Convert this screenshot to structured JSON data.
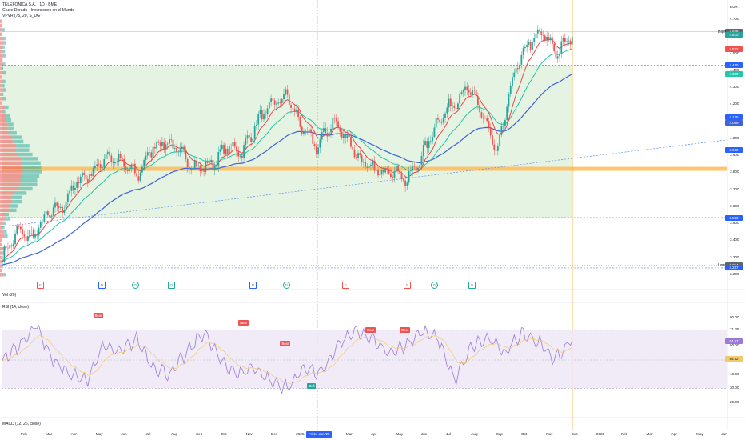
{
  "header": {
    "symbol": "TELEFONICA S.A. · 1D · BME",
    "indicator1": "Cruce Dorado - Inversiones en el Mundo",
    "indicator2": "VPVR (75, 20, S_UG\")",
    "currency": "EUR"
  },
  "colors": {
    "up": "#26a69a",
    "down": "#ef5350",
    "ema_fast": "#ef4444",
    "ema_mid": "#22c7a8",
    "ema_slow": "#3f63d8",
    "zone": "#dcefd9",
    "poc": "#ffb74d",
    "rsi": "#9c7bd8",
    "rsi_ma": "#f3c96e",
    "dashed": "#5b8def"
  },
  "price_axis": {
    "min": 3.185,
    "max": 4.7,
    "ticks": [
      "4.700",
      "4.600",
      "4.500",
      "4.400",
      "4.300",
      "4.200",
      "4.100",
      "4.000",
      "3.900",
      "3.800",
      "3.700",
      "3.600",
      "3.500",
      "3.400",
      "3.300",
      "3.200"
    ],
    "tags": [
      {
        "text": "4.628",
        "label": "High",
        "color": "#5f6673",
        "value": 4.628
      },
      {
        "text": "4.610",
        "color": "#26a69a",
        "value": 4.61
      },
      {
        "text": "4.522",
        "color": "#ef5350",
        "value": 4.522
      },
      {
        "text": "4.430",
        "color": "#2962ff",
        "value": 4.43
      },
      {
        "text": "4.380",
        "color": "#22c7a8",
        "value": 4.38
      },
      {
        "text": "4.125",
        "color": "#2962ff",
        "value": 4.125
      },
      {
        "text": "4.089",
        "color": "#3f63d8",
        "value": 4.089
      },
      {
        "text": "3.930",
        "color": "#2962ff",
        "value": 3.93
      },
      {
        "text": "3.533",
        "color": "#2962ff",
        "value": 3.533
      },
      {
        "text": "3.254",
        "label": "Low",
        "color": "#5f6673",
        "value": 3.254
      },
      {
        "text": "3.237",
        "color": "#2962ff",
        "value": 3.237
      }
    ]
  },
  "levels": [
    4.43,
    3.93,
    3.533,
    3.237
  ],
  "poc_level": 3.82,
  "zone": {
    "top": 4.43,
    "bottom": 3.533
  },
  "trendline": {
    "from_index": 0,
    "from_value": 3.48,
    "to_index": 399,
    "to_value": 3.99
  },
  "time_axis": {
    "ticks": [
      "Feb",
      "Mar",
      "Apr",
      "May",
      "Jun",
      "Jul",
      "Aug",
      "Sep",
      "Oct",
      "Nov",
      "Dec",
      "2025",
      "Feb",
      "Mar",
      "Apr",
      "May",
      "Jun",
      "Jul",
      "Aug",
      "Sep",
      "Oct",
      "Nov",
      "Dec",
      "2026",
      "Feb",
      "Mar",
      "Apr",
      "May",
      "Jun"
    ],
    "cursor_label": "Fri 24 Jan '25"
  },
  "events": [
    "E",
    "D",
    "D",
    "D",
    "D",
    "D",
    "E",
    "E",
    "D",
    "D",
    "D"
  ],
  "volume": {
    "title": "Vol (20)"
  },
  "rsi": {
    "title": "RSI (14, close)",
    "ticks": [
      "80.00",
      "71.35",
      "60.00",
      "50.00",
      "40.00",
      "30.00",
      "20.00"
    ],
    "current": "64.67",
    "current_ma": "56.52",
    "upper": 71.35,
    "lower": 30,
    "labels": [
      {
        "text": "Bear",
        "type": "bear",
        "index": 50,
        "value": 80
      },
      {
        "text": "Bear",
        "type": "bear",
        "index": 130,
        "value": 75
      },
      {
        "text": "Bear",
        "type": "bear",
        "index": 153,
        "value": 60
      },
      {
        "text": "Bull",
        "type": "bull",
        "index": 168,
        "value": 30
      },
      {
        "text": "Bear",
        "type": "bear",
        "index": 200,
        "value": 70
      },
      {
        "text": "Bear",
        "type": "bear",
        "index": 219,
        "value": 70
      }
    ]
  },
  "macd": {
    "title": "MACD (12, 26, close)"
  },
  "chart_data": {
    "type": "line",
    "title": "TELEFONICA S.A. · 1D · BME",
    "ylabel": "EUR",
    "ylim": [
      3.185,
      4.7
    ],
    "series": [
      {
        "name": "price",
        "color": "#26a69a",
        "values": [
          3.3,
          3.45,
          3.42,
          3.55,
          3.6,
          3.75,
          3.8,
          3.9,
          3.85,
          3.78,
          3.95,
          3.98,
          3.9,
          3.82,
          3.85,
          3.95,
          3.92,
          4.1,
          4.2,
          4.25,
          4.05,
          3.95,
          4.1,
          4.0,
          3.85,
          3.8,
          3.82,
          3.75,
          3.9,
          4.1,
          4.2,
          4.3,
          4.15,
          3.9,
          4.35,
          4.55,
          4.62,
          4.5,
          4.61
        ]
      }
    ],
    "rsi_series": [
      {
        "name": "RSI",
        "values": [
          50,
          60,
          75,
          50,
          40,
          35,
          60,
          55,
          65,
          45,
          40,
          55,
          70,
          50,
          40,
          45,
          35,
          30,
          45,
          40,
          60,
          70,
          65,
          55,
          60,
          70,
          65,
          35,
          60,
          65,
          55,
          70,
          62,
          50,
          65
        ]
      }
    ]
  }
}
